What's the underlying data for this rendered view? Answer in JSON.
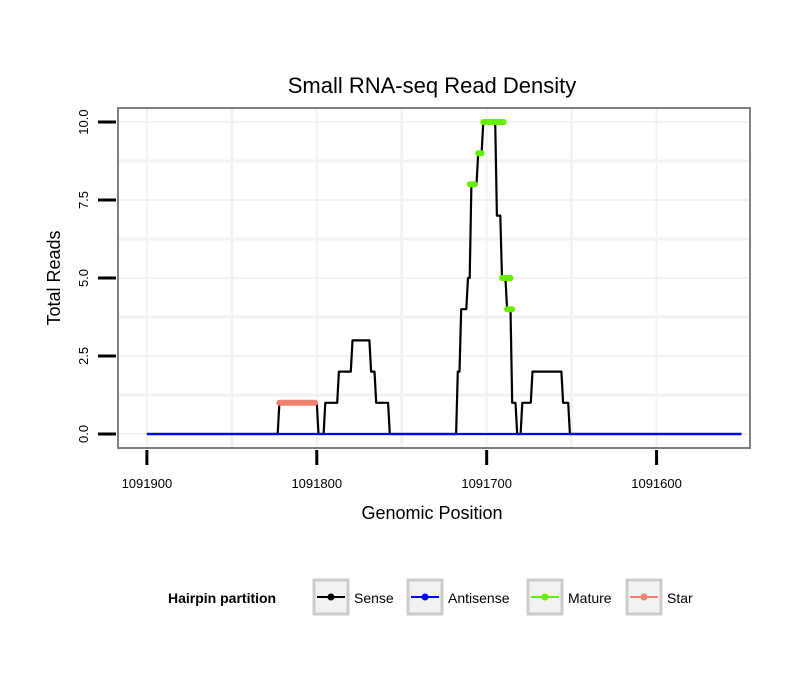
{
  "chart_data": {
    "type": "line",
    "title": "Small RNA-seq Read Density",
    "xlabel": "Genomic Position",
    "ylabel": "Total Reads",
    "x_reversed": true,
    "xlim": [
      1091917,
      1091545
    ],
    "ylim": [
      -0.45,
      10.45
    ],
    "x_ticks": [
      1091900,
      1091800,
      1091700,
      1091600
    ],
    "x_tick_labels": [
      "1091900",
      "1091800",
      "1091700",
      "1091600"
    ],
    "y_ticks": [
      0,
      2.5,
      5,
      7.5,
      10
    ],
    "y_tick_labels": [
      "0.0",
      "2.5",
      "5.0",
      "7.5",
      "10.0"
    ],
    "grid": true,
    "series": [
      {
        "name": "Sense",
        "color": "#000000",
        "x": [
          1091900,
          1091823,
          1091822,
          1091800,
          1091799,
          1091796,
          1091795,
          1091788,
          1091787,
          1091780,
          1091779,
          1091769,
          1091768,
          1091766,
          1091765,
          1091758,
          1091757,
          1091718,
          1091717,
          1091716,
          1091715,
          1091712,
          1091711,
          1091710,
          1091709,
          1091706,
          1091705,
          1091703,
          1091702,
          1091695,
          1091694,
          1091692,
          1091691,
          1091689,
          1091688,
          1091686,
          1091685,
          1091683,
          1091682,
          1091680,
          1091679,
          1091674,
          1091673,
          1091665,
          1091664,
          1091656,
          1091655,
          1091652,
          1091651,
          1091550
        ],
        "y": [
          0,
          0,
          1,
          1,
          0,
          0,
          1,
          1,
          2,
          2,
          3,
          3,
          2,
          2,
          1,
          1,
          0,
          0,
          2,
          2,
          4,
          4,
          5,
          5,
          8,
          8,
          9,
          9,
          10,
          10,
          7,
          7,
          5,
          5,
          4,
          4,
          1,
          1,
          0,
          0,
          1,
          1,
          2,
          2,
          2,
          2,
          1,
          1,
          0,
          0
        ]
      },
      {
        "name": "Antisense",
        "color": "#0000ff",
        "x": [
          1091900,
          1091550
        ],
        "y": [
          0,
          0
        ]
      },
      {
        "name": "Mature",
        "color": "#66ee00",
        "segments": [
          {
            "x": [
              1091710,
              1091707
            ],
            "y": [
              8,
              8
            ]
          },
          {
            "x": [
              1091705,
              1091703
            ],
            "y": [
              9,
              9
            ]
          },
          {
            "x": [
              1091702,
              1091690
            ],
            "y": [
              10,
              10
            ]
          },
          {
            "x": [
              1091691,
              1091686
            ],
            "y": [
              5,
              5
            ]
          },
          {
            "x": [
              1091688,
              1091685
            ],
            "y": [
              4,
              4
            ]
          }
        ]
      },
      {
        "name": "Star",
        "color": "#f08070",
        "segments": [
          {
            "x": [
              1091822,
              1091801
            ],
            "y": [
              1,
              1
            ]
          }
        ]
      }
    ],
    "legend": {
      "title": "Hairpin partition",
      "placement": "bottom",
      "entries": [
        {
          "label": "Sense",
          "color": "#000000"
        },
        {
          "label": "Antisense",
          "color": "#0000ff"
        },
        {
          "label": "Mature",
          "color": "#66ee00"
        },
        {
          "label": "Star",
          "color": "#f08070"
        }
      ]
    }
  }
}
